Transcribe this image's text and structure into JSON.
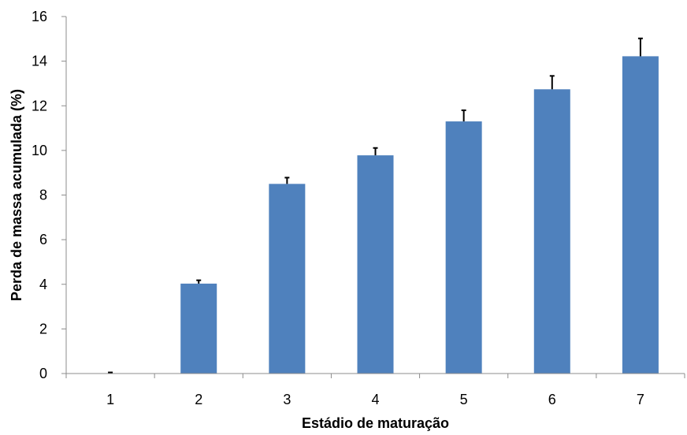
{
  "chart_data": {
    "type": "bar",
    "title": "",
    "xlabel": "Estádio de maturação",
    "ylabel": "Perda de massa acumulada (%)",
    "categories": [
      "1",
      "2",
      "3",
      "4",
      "5",
      "6",
      "7"
    ],
    "values": [
      0,
      4.03,
      8.5,
      9.78,
      11.3,
      12.74,
      14.22
    ],
    "errors": [
      0.05,
      0.15,
      0.28,
      0.33,
      0.5,
      0.6,
      0.8
    ],
    "ylim": [
      0,
      16
    ],
    "yticks": [
      "0",
      "2",
      "4",
      "6",
      "8",
      "10",
      "12",
      "14",
      "16"
    ],
    "grid": false,
    "legend": "none",
    "bar_color": "#4f81bd"
  }
}
